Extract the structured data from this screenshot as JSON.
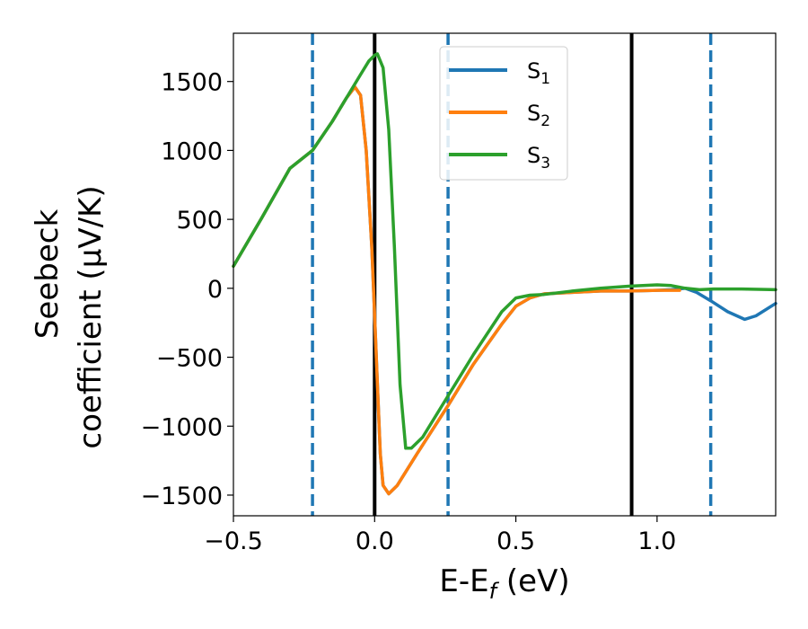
{
  "chart_data": {
    "type": "line",
    "xlabel_main": "E-E",
    "xlabel_sub": "f",
    "xlabel_unit": " (eV)",
    "ylabel_line1": "Seebeck",
    "ylabel_line2": "coefficient  (μV/K)",
    "xlim": [
      -0.5,
      1.42
    ],
    "ylim": [
      -1650,
      1850
    ],
    "xticks": [
      {
        "value": -0.5,
        "label": "−0.5"
      },
      {
        "value": 0.0,
        "label": "0.0"
      },
      {
        "value": 0.5,
        "label": "0.5"
      },
      {
        "value": 1.0,
        "label": "1.0"
      }
    ],
    "yticks": [
      {
        "value": 1500,
        "label": "1500"
      },
      {
        "value": 1000,
        "label": "1000"
      },
      {
        "value": 500,
        "label": "500"
      },
      {
        "value": 0,
        "label": "0"
      },
      {
        "value": -500,
        "label": "−500"
      },
      {
        "value": -1000,
        "label": "−1000"
      },
      {
        "value": -1500,
        "label": "−1500"
      }
    ],
    "legend_position": "top-center",
    "grid": false,
    "vlines": [
      {
        "x": -0.22,
        "style": "dashed",
        "color": "#1f77b4"
      },
      {
        "x": 0.0,
        "style": "solid",
        "color": "#000000"
      },
      {
        "x": 0.26,
        "style": "dashed",
        "color": "#1f77b4"
      },
      {
        "x": 0.91,
        "style": "solid",
        "color": "#000000"
      },
      {
        "x": 1.19,
        "style": "dashed",
        "color": "#1f77b4"
      }
    ],
    "series": [
      {
        "name": "S",
        "sub": "1",
        "color": "#1f77b4",
        "points": [
          [
            -0.5,
            160
          ],
          [
            -0.4,
            510
          ],
          [
            -0.3,
            870
          ],
          [
            -0.22,
            1000
          ],
          [
            -0.15,
            1210
          ],
          [
            -0.1,
            1380
          ],
          [
            -0.07,
            1460
          ],
          [
            -0.05,
            1400
          ],
          [
            -0.03,
            1000
          ],
          [
            -0.01,
            300
          ],
          [
            0.0,
            -200
          ],
          [
            0.01,
            -700
          ],
          [
            0.02,
            -1200
          ],
          [
            0.03,
            -1430
          ],
          [
            0.05,
            -1490
          ],
          [
            0.08,
            -1430
          ],
          [
            0.15,
            -1200
          ],
          [
            0.26,
            -850
          ],
          [
            0.35,
            -550
          ],
          [
            0.45,
            -260
          ],
          [
            0.5,
            -130
          ],
          [
            0.55,
            -70
          ],
          [
            0.6,
            -40
          ],
          [
            0.7,
            -30
          ],
          [
            0.8,
            -20
          ],
          [
            0.9,
            -20
          ],
          [
            1.0,
            -15
          ],
          [
            1.05,
            -10
          ],
          [
            1.1,
            0
          ],
          [
            1.14,
            -30
          ],
          [
            1.19,
            -90
          ],
          [
            1.25,
            -170
          ],
          [
            1.31,
            -225
          ],
          [
            1.35,
            -200
          ],
          [
            1.42,
            -110
          ]
        ]
      },
      {
        "name": "S",
        "sub": "2",
        "color": "#ff7f0e",
        "points": [
          [
            -0.5,
            160
          ],
          [
            -0.4,
            510
          ],
          [
            -0.3,
            870
          ],
          [
            -0.22,
            1000
          ],
          [
            -0.15,
            1210
          ],
          [
            -0.1,
            1380
          ],
          [
            -0.07,
            1460
          ],
          [
            -0.05,
            1400
          ],
          [
            -0.03,
            1000
          ],
          [
            -0.01,
            300
          ],
          [
            0.0,
            -200
          ],
          [
            0.01,
            -700
          ],
          [
            0.02,
            -1200
          ],
          [
            0.03,
            -1430
          ],
          [
            0.05,
            -1490
          ],
          [
            0.08,
            -1430
          ],
          [
            0.15,
            -1200
          ],
          [
            0.26,
            -850
          ],
          [
            0.35,
            -550
          ],
          [
            0.45,
            -260
          ],
          [
            0.5,
            -130
          ],
          [
            0.55,
            -70
          ],
          [
            0.6,
            -40
          ],
          [
            0.7,
            -30
          ],
          [
            0.8,
            -20
          ],
          [
            0.9,
            -20
          ],
          [
            1.0,
            -15
          ],
          [
            1.08,
            -15
          ]
        ]
      },
      {
        "name": "S",
        "sub": "3",
        "color": "#2ca02c",
        "points": [
          [
            -0.5,
            160
          ],
          [
            -0.4,
            510
          ],
          [
            -0.3,
            870
          ],
          [
            -0.22,
            1000
          ],
          [
            -0.15,
            1210
          ],
          [
            -0.1,
            1380
          ],
          [
            -0.05,
            1550
          ],
          [
            -0.02,
            1650
          ],
          [
            0.0,
            1690
          ],
          [
            0.01,
            1700
          ],
          [
            0.03,
            1600
          ],
          [
            0.05,
            1150
          ],
          [
            0.07,
            300
          ],
          [
            0.09,
            -700
          ],
          [
            0.11,
            -1160
          ],
          [
            0.13,
            -1160
          ],
          [
            0.17,
            -1080
          ],
          [
            0.26,
            -780
          ],
          [
            0.35,
            -480
          ],
          [
            0.45,
            -170
          ],
          [
            0.5,
            -70
          ],
          [
            0.55,
            -50
          ],
          [
            0.6,
            -45
          ],
          [
            0.7,
            -20
          ],
          [
            0.8,
            0
          ],
          [
            0.9,
            15
          ],
          [
            0.95,
            20
          ],
          [
            1.0,
            25
          ],
          [
            1.05,
            20
          ],
          [
            1.1,
            0
          ],
          [
            1.15,
            -10
          ],
          [
            1.2,
            -5
          ],
          [
            1.3,
            -5
          ],
          [
            1.42,
            -10
          ]
        ]
      }
    ]
  }
}
